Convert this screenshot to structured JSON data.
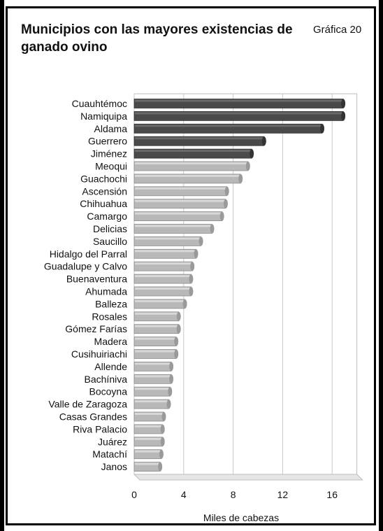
{
  "title": "Municipios con las mayores existencias de ganado ovino",
  "chart_number": "Gráfica 20",
  "colors": {
    "dark_bar": "#4a4a4a",
    "light_bar": "#b8b8b8",
    "frame": "#000000"
  },
  "chart_data": {
    "type": "bar",
    "orientation": "horizontal",
    "title": "Municipios con las mayores existencias de ganado ovino",
    "xlabel": "Miles de cabezas",
    "ylabel": "",
    "xlim": [
      0,
      18
    ],
    "xticks": [
      0,
      4,
      8,
      12,
      16
    ],
    "grid": true,
    "categories": [
      "Cuauhtémoc",
      "Namiquipa",
      "Aldama",
      "Guerrero",
      "Jiménez",
      "Meoqui",
      "Guachochi",
      "Ascensión",
      "Chihuahua",
      "Camargo",
      "Delicias",
      "Saucillo",
      "Hidalgo del Parral",
      "Guadalupe y Calvo",
      "Buenaventura",
      "Ahumada",
      "Balleza",
      "Rosales",
      "Gómez Farías",
      "Madera",
      "Cusihuiriachi",
      "Allende",
      "Bachíniva",
      "Bocoyna",
      "Valle de Zaragoza",
      "Casas Grandes",
      "Riva Palacio",
      "Juárez",
      "Matachí",
      "Janos"
    ],
    "values": [
      16.9,
      16.9,
      15.2,
      10.5,
      9.5,
      9.2,
      8.6,
      7.5,
      7.4,
      7.1,
      6.3,
      5.4,
      5.0,
      4.7,
      4.6,
      4.6,
      4.1,
      3.6,
      3.6,
      3.4,
      3.4,
      3.0,
      3.0,
      2.9,
      2.8,
      2.4,
      2.3,
      2.3,
      2.2,
      2.1
    ],
    "highlighted_count": 5
  }
}
